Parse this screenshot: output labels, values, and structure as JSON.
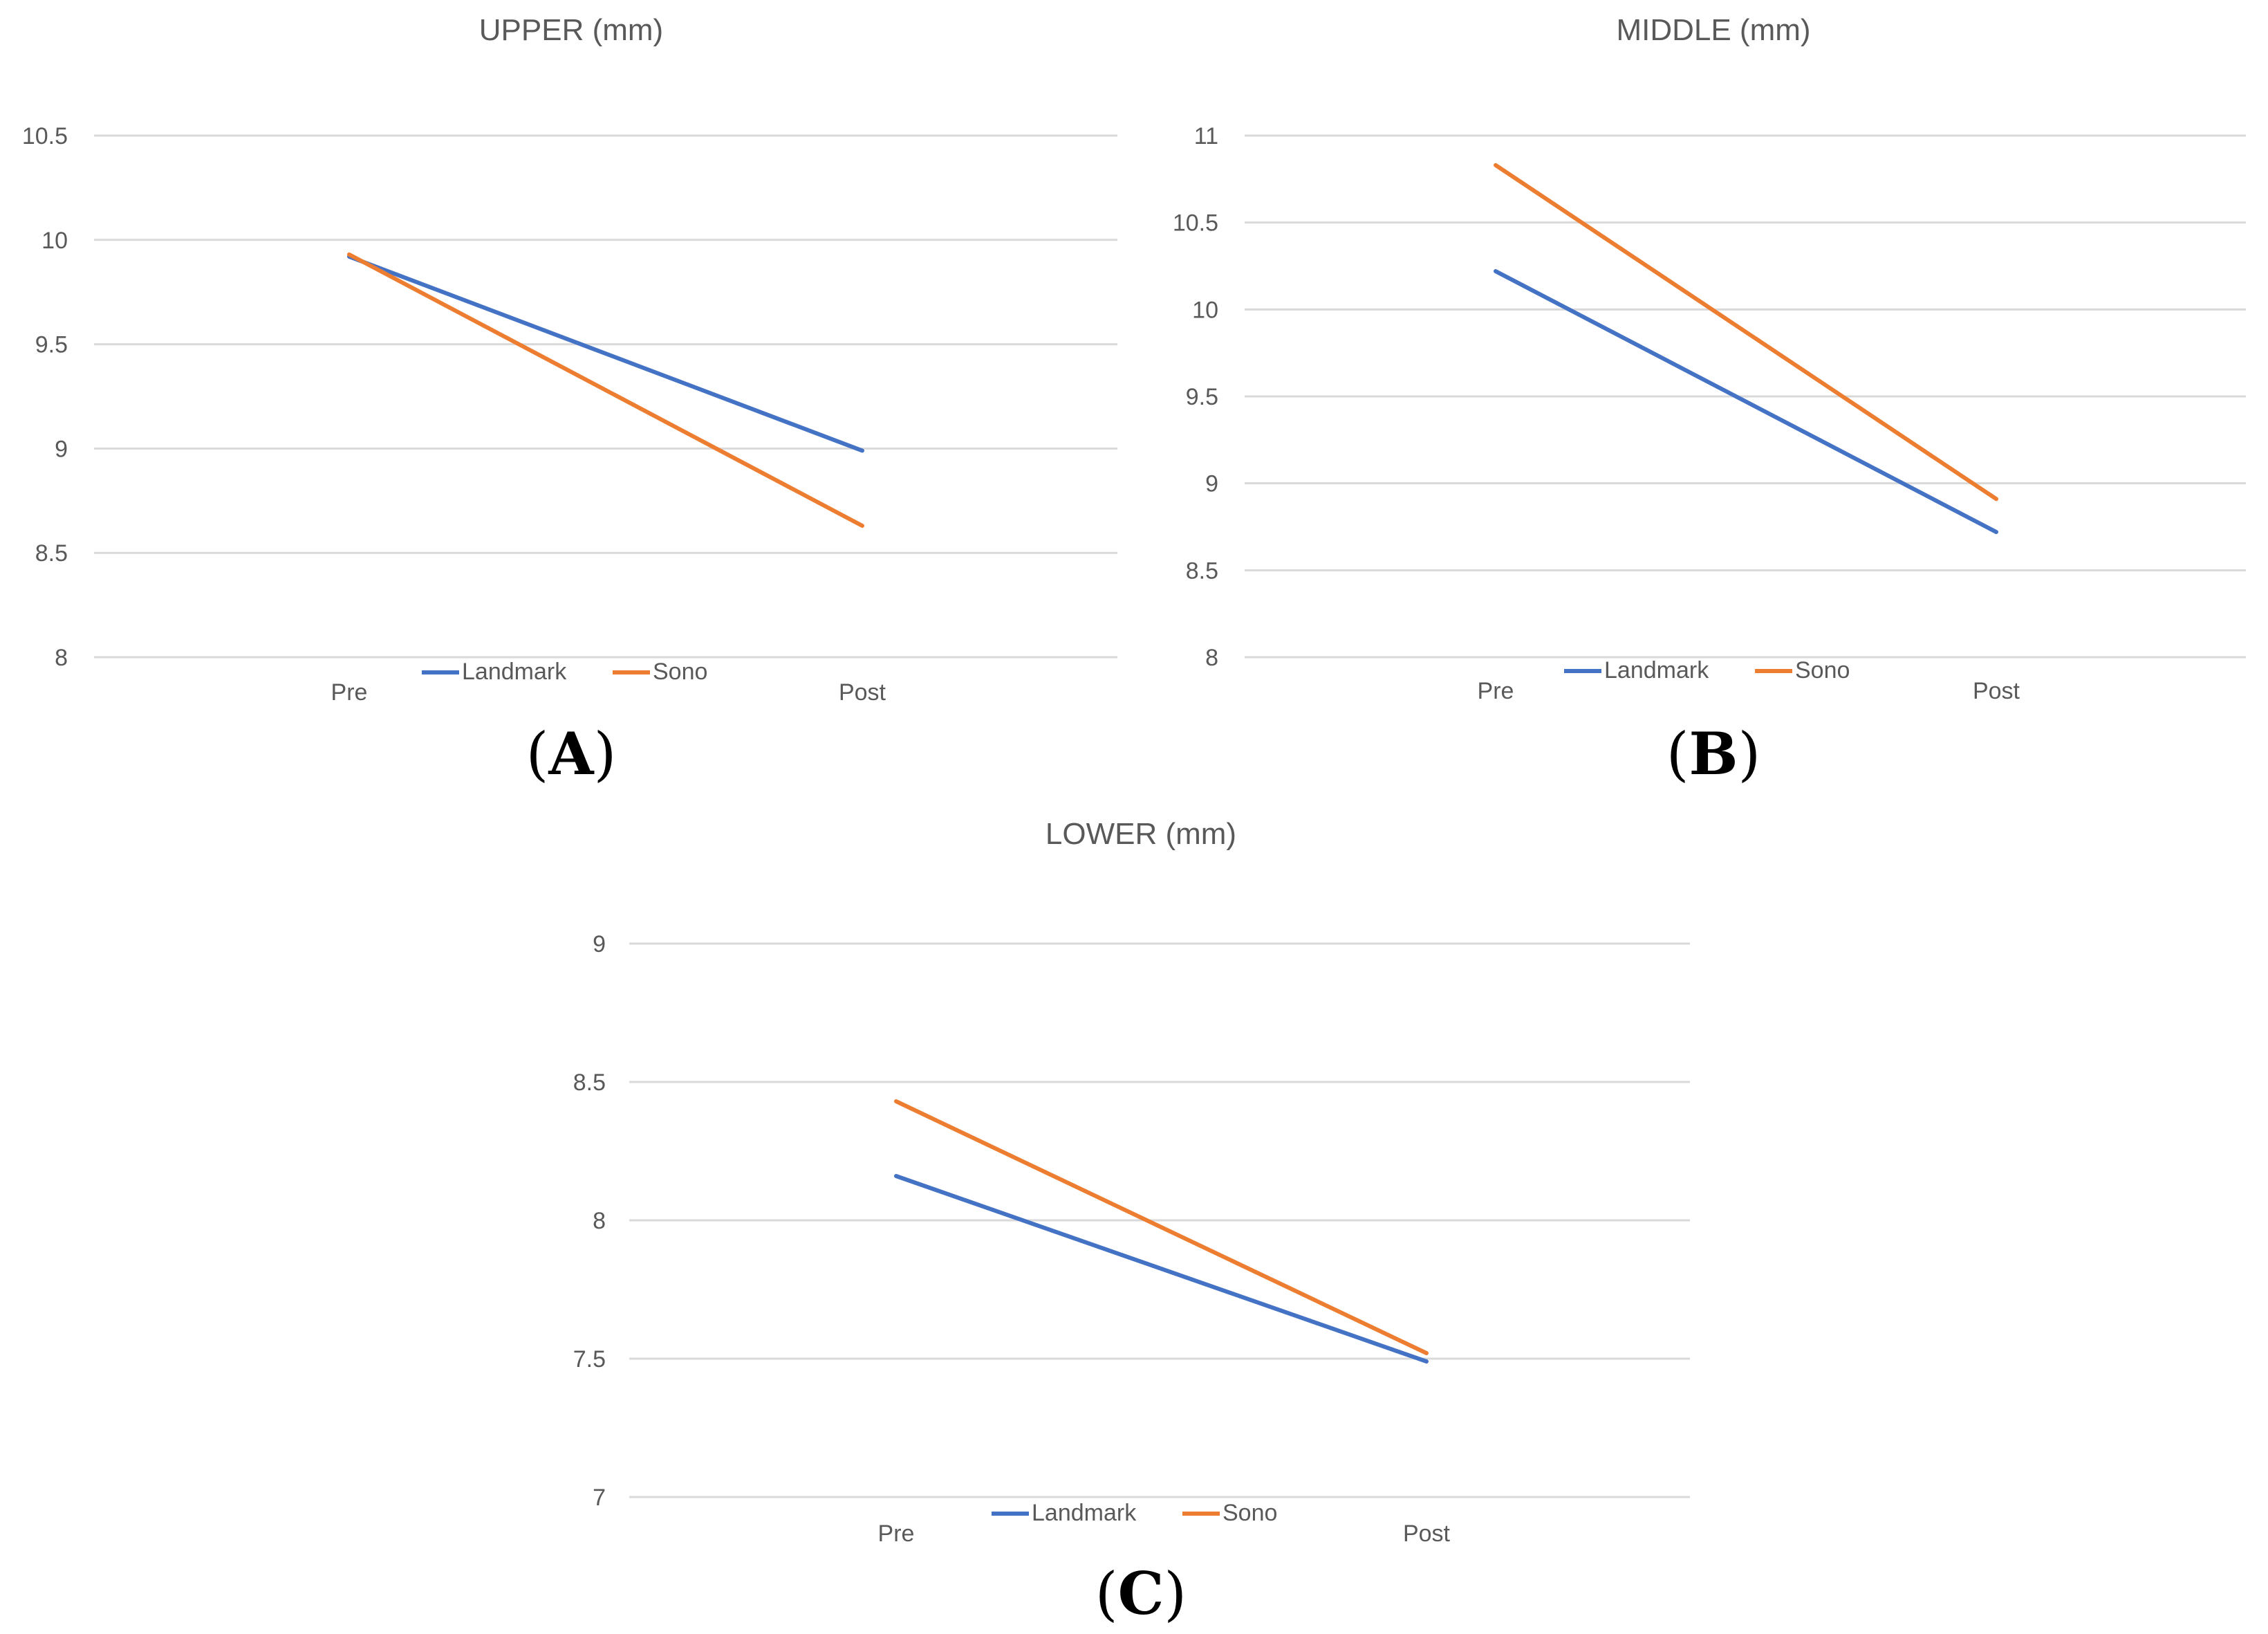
{
  "colors": {
    "landmark": "#4472C4",
    "sono": "#ED7D31",
    "grid": "#D9D9D9",
    "text": "#595959"
  },
  "chart_data": [
    {
      "type": "line",
      "title": "UPPER (mm)",
      "panel": "A",
      "categories": [
        "Pre",
        "Post"
      ],
      "series": [
        {
          "name": "Landmark",
          "values": [
            9.92,
            8.99
          ]
        },
        {
          "name": "Sono",
          "values": [
            9.93,
            8.63
          ]
        }
      ],
      "yticks": [
        "8",
        "8.5",
        "9",
        "9.5",
        "10",
        "10.5"
      ],
      "ylim": [
        8,
        10.5
      ],
      "legend": "bottom"
    },
    {
      "type": "line",
      "title": "MIDDLE (mm)",
      "panel": "B",
      "categories": [
        "Pre",
        "Post"
      ],
      "series": [
        {
          "name": "Landmark",
          "values": [
            10.22,
            8.72
          ]
        },
        {
          "name": "Sono",
          "values": [
            10.83,
            8.91
          ]
        }
      ],
      "yticks": [
        "8",
        "8.5",
        "9",
        "9.5",
        "10",
        "10.5",
        "11"
      ],
      "ylim": [
        8,
        11
      ],
      "legend": "bottom"
    },
    {
      "type": "line",
      "title": "LOWER (mm)",
      "panel": "C",
      "categories": [
        "Pre",
        "Post"
      ],
      "series": [
        {
          "name": "Landmark",
          "values": [
            8.16,
            7.49
          ]
        },
        {
          "name": "Sono",
          "values": [
            8.43,
            7.52
          ]
        }
      ],
      "yticks": [
        "7",
        "7.5",
        "8",
        "8.5",
        "9"
      ],
      "ylim": [
        7,
        9
      ],
      "legend": "bottom"
    }
  ]
}
